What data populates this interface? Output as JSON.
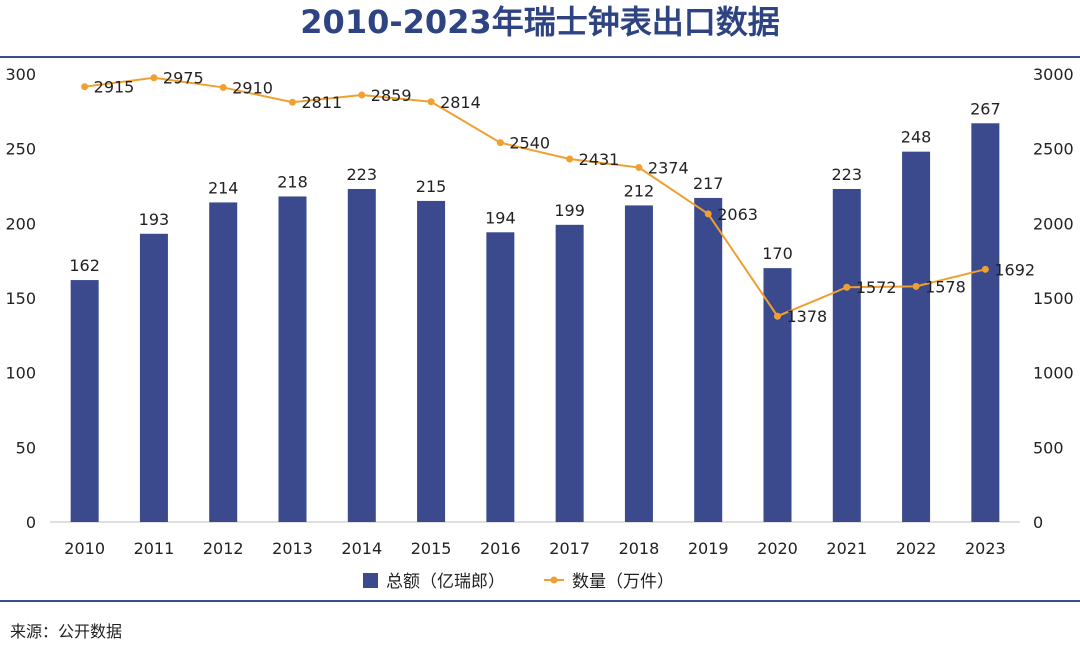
{
  "page": {
    "title": "2010-2023年瑞士钟表出口数据",
    "source": "来源：公开数据"
  },
  "colors": {
    "bar": "#3a4a8c",
    "line": "#f0a030",
    "text": "#222222",
    "title": "#2e4482"
  },
  "chart_data": {
    "type": "bar",
    "title": "2010-2023年瑞士钟表出口数据",
    "categories": [
      "2010",
      "2011",
      "2012",
      "2013",
      "2014",
      "2015",
      "2016",
      "2017",
      "2018",
      "2019",
      "2020",
      "2021",
      "2022",
      "2023"
    ],
    "series": [
      {
        "name": "总额（亿瑞郎）",
        "type": "bar",
        "axis": "left",
        "values": [
          162,
          193,
          214,
          218,
          223,
          215,
          194,
          199,
          212,
          217,
          170,
          223,
          248,
          267
        ]
      },
      {
        "name": "数量（万件）",
        "type": "line",
        "axis": "right",
        "values": [
          2915,
          2975,
          2910,
          2811,
          2859,
          2814,
          2540,
          2431,
          2374,
          2063,
          1378,
          1572,
          1578,
          1692
        ]
      }
    ],
    "left_axis": {
      "ylim": [
        0,
        300
      ],
      "ticks": [
        "0",
        "50",
        "100",
        "150",
        "200",
        "250",
        "300"
      ]
    },
    "right_axis": {
      "ylim": [
        0,
        3000
      ],
      "ticks": [
        "0",
        "500",
        "1000",
        "1500",
        "2000",
        "2500",
        "3000"
      ]
    },
    "legend_position": "bottom",
    "grid": false
  }
}
